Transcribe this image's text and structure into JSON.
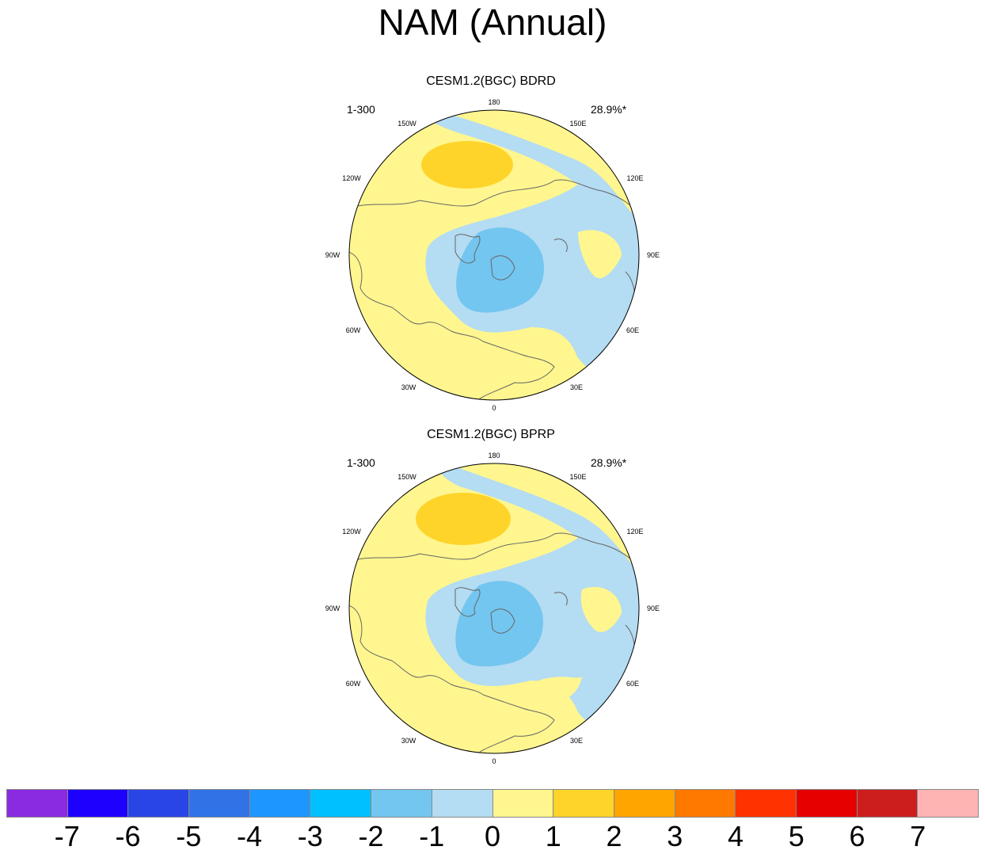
{
  "title": "NAM (Annual)",
  "panels": [
    {
      "title": "CESM1.2(BGC) BDRD",
      "left_label": "1-300",
      "right_label": "28.9%*",
      "lon_labels": {
        "180": "180",
        "150E": "150E",
        "120E": "120E",
        "90E": "90E",
        "60E": "60E",
        "30E": "30E",
        "0": "0",
        "30W": "30W",
        "60W": "60W",
        "90W": "90W",
        "120W": "120W",
        "150W": "150W"
      }
    },
    {
      "title": "CESM1.2(BGC) BPRP",
      "left_label": "1-300",
      "right_label": "28.9%*",
      "lon_labels": {
        "180": "180",
        "150E": "150E",
        "120E": "120E",
        "90E": "90E",
        "60E": "60E",
        "30E": "30E",
        "0": "0",
        "30W": "30W",
        "60W": "60W",
        "90W": "90W",
        "120W": "120W",
        "150W": "150W"
      }
    }
  ],
  "colorbar": {
    "labels": [
      "-7",
      "-6",
      "-5",
      "-4",
      "-3",
      "-2",
      "-1",
      "0",
      "1",
      "2",
      "3",
      "4",
      "5",
      "6",
      "7"
    ],
    "colors": [
      "#8a2be2",
      "#1e00ff",
      "#2a45e6",
      "#3173e6",
      "#1e96ff",
      "#00c0ff",
      "#73c6f0",
      "#b4dcf2",
      "#fff68f",
      "#ffd42a",
      "#ffa500",
      "#ff7800",
      "#ff3200",
      "#e60000",
      "#cd1e1e",
      "#ffb4b4"
    ]
  }
}
